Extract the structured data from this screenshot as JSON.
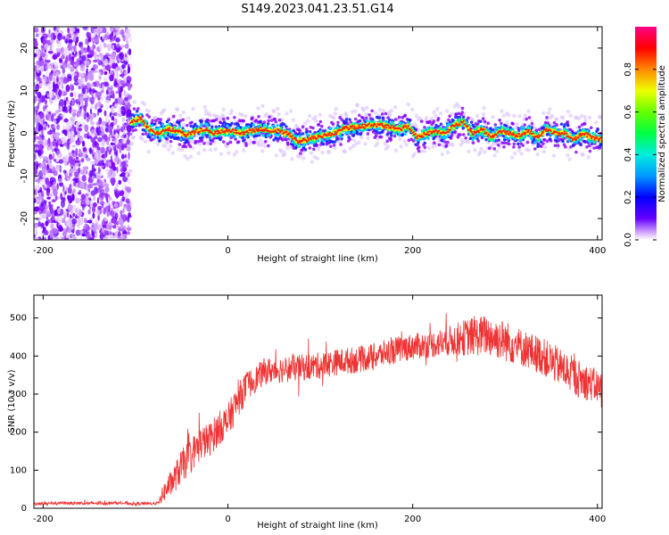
{
  "figure_title": "S149.2023.041.23.51.G14",
  "colors": {
    "snr_line": "#ee3333",
    "axis": "#000000",
    "background": "#ffffff"
  },
  "chart_data": [
    {
      "type": "heatmap",
      "xlabel": "Height of straight line (km)",
      "ylabel": "Frequency (Hz)",
      "xlim": [
        -210,
        405
      ],
      "ylim": [
        -25,
        25
      ],
      "xticks": [
        -200,
        0,
        200,
        400
      ],
      "yticks": [
        -20,
        -10,
        0,
        10,
        20
      ],
      "colorbar": {
        "label": "Normalized spectral amplitude",
        "range": [
          0,
          1
        ],
        "ticks": [
          "0.0",
          "0.2",
          "0.4",
          "0.6",
          "0.8"
        ],
        "colormap": "hsv"
      },
      "noise_region_x": [
        -210,
        -105
      ],
      "ridge": {
        "x": [
          -105,
          -95,
          -85,
          -75,
          -65,
          -55,
          -45,
          -35,
          -25,
          -15,
          -5,
          5,
          15,
          25,
          35,
          45,
          55,
          65,
          75,
          85,
          95,
          105,
          115,
          125,
          135,
          145,
          155,
          165,
          175,
          185,
          195,
          205,
          215,
          225,
          235,
          245,
          255,
          265,
          275,
          285,
          295,
          305,
          315,
          325,
          335,
          345,
          355,
          365,
          375,
          385,
          395,
          405
        ],
        "freq": [
          2.5,
          3.5,
          1.0,
          0.0,
          1.0,
          0.5,
          -0.5,
          0.5,
          1.0,
          0.0,
          0.5,
          0.5,
          0.0,
          0.5,
          1.0,
          0.5,
          0.5,
          0.0,
          -2.0,
          -1.5,
          -1.0,
          -0.5,
          0.0,
          1.0,
          1.5,
          1.5,
          2.0,
          2.0,
          1.5,
          1.0,
          1.5,
          -1.0,
          0.0,
          0.5,
          0.0,
          2.0,
          2.5,
          0.0,
          1.0,
          -1.0,
          0.5,
          0.0,
          -0.5,
          0.5,
          -1.0,
          1.0,
          0.0,
          0.0,
          -1.5,
          0.0,
          -1.0,
          -1.5
        ]
      }
    },
    {
      "type": "line",
      "xlabel": "Height of straight line (km)",
      "ylabel": "SNR (10 * v/v)",
      "xlim": [
        -210,
        405
      ],
      "ylim": [
        0,
        560
      ],
      "xticks": [
        -200,
        0,
        200,
        400
      ],
      "yticks": [
        0,
        100,
        200,
        300,
        400,
        500
      ],
      "series": [
        {
          "x": [
            -210,
            -180,
            -150,
            -120,
            -100,
            -85,
            -75,
            -70,
            -60,
            -50,
            -40,
            -30,
            -20,
            -10,
            0,
            10,
            20,
            30,
            40,
            60,
            80,
            100,
            120,
            140,
            160,
            180,
            200,
            220,
            240,
            260,
            280,
            300,
            320,
            340,
            360,
            380,
            400,
            405
          ],
          "y": [
            12,
            14,
            13,
            14,
            12,
            12,
            14,
            40,
            70,
            110,
            140,
            170,
            180,
            210,
            230,
            280,
            320,
            340,
            360,
            365,
            370,
            375,
            385,
            390,
            400,
            415,
            425,
            430,
            440,
            450,
            455,
            440,
            420,
            400,
            370,
            340,
            320,
            315
          ],
          "noise_amplitude": [
            4,
            4,
            4,
            4,
            4,
            4,
            4,
            25,
            35,
            45,
            45,
            45,
            45,
            45,
            45,
            45,
            40,
            35,
            35,
            35,
            35,
            35,
            35,
            35,
            35,
            35,
            35,
            35,
            40,
            50,
            55,
            55,
            50,
            50,
            50,
            50,
            45,
            45
          ]
        }
      ]
    }
  ]
}
